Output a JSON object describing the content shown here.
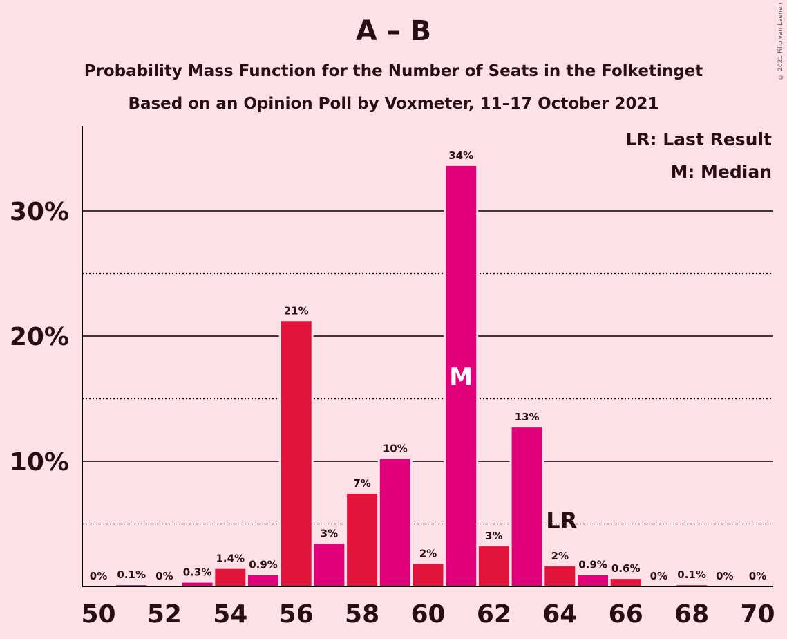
{
  "title": "A – B",
  "subtitle1": "Probability Mass Function for the Number of Seats in the Folketinget",
  "subtitle2": "Based on an Opinion Poll by Voxmeter, 11–17 October 2021",
  "copyright": "© 2021 Filip van Laenen",
  "legend": {
    "last_result": "LR: Last Result",
    "median": "M: Median"
  },
  "colors": {
    "background": "#fde1e6",
    "bar_red": "#e3143c",
    "bar_magenta": "#e2007a",
    "text": "#2a0f12"
  },
  "chart_data": {
    "type": "bar",
    "x": [
      50,
      51,
      52,
      53,
      54,
      55,
      56,
      57,
      58,
      59,
      60,
      61,
      62,
      63,
      64,
      65,
      66,
      67,
      68,
      69,
      70
    ],
    "values": [
      0,
      0.1,
      0,
      0.3,
      1.4,
      0.9,
      21.2,
      3.4,
      7.4,
      10.2,
      1.8,
      33.6,
      3.2,
      12.7,
      1.6,
      0.9,
      0.6,
      0,
      0.1,
      0,
      0
    ],
    "labels": [
      "0%",
      "0.1%",
      "0%",
      "0.3%",
      "1.4%",
      "0.9%",
      "21%",
      "3%",
      "7%",
      "10%",
      "2%",
      "34%",
      "3%",
      "13%",
      "2%",
      "0.9%",
      "0.6%",
      "0%",
      "0.1%",
      "0%",
      "0%"
    ],
    "colors": [
      "red",
      "magenta",
      "red",
      "magenta",
      "red",
      "magenta",
      "red",
      "magenta",
      "red",
      "magenta",
      "red",
      "magenta",
      "red",
      "magenta",
      "red",
      "magenta",
      "red",
      "magenta",
      "red",
      "magenta",
      "red"
    ],
    "x_ticks": [
      "50",
      "52",
      "54",
      "56",
      "58",
      "60",
      "62",
      "64",
      "66",
      "68",
      "70"
    ],
    "y_ticks": [
      {
        "value": 10,
        "label": "10%"
      },
      {
        "value": 20,
        "label": "20%"
      },
      {
        "value": 30,
        "label": "30%"
      }
    ],
    "y_minor_gridlines": [
      5,
      15,
      25
    ],
    "ylim": [
      0,
      36.7
    ],
    "median_seat": 61,
    "median_marker": "M",
    "last_result_seat": 64,
    "last_result_marker": "LR"
  }
}
